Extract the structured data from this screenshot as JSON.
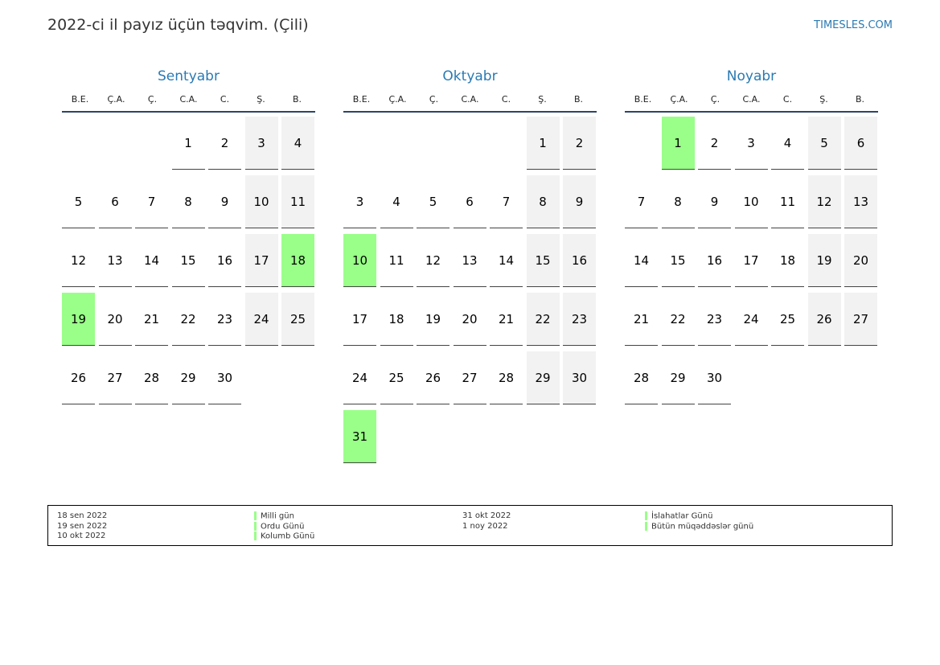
{
  "page": {
    "title": "2022-ci il payız üçün təqvim. (Çili)",
    "site": "TIMESLES.COM"
  },
  "colors": {
    "accent": "#2a7ab3",
    "holiday": "#99ff88",
    "weekend": "#f2f2f2",
    "header_line": "#2e4468"
  },
  "weekday_labels": [
    "B.E.",
    "Ç.A.",
    "Ç.",
    "C.A.",
    "C.",
    "Ş.",
    "B."
  ],
  "months": [
    {
      "name": "Sentyabr",
      "start_weekday": 3,
      "days": 30,
      "holidays": [
        18,
        19
      ]
    },
    {
      "name": "Oktyabr",
      "start_weekday": 5,
      "days": 31,
      "holidays": [
        10,
        31
      ]
    },
    {
      "name": "Noyabr",
      "start_weekday": 1,
      "days": 30,
      "holidays": [
        1
      ]
    }
  ],
  "legend": {
    "col1": [
      {
        "date": "18 sen 2022",
        "name": "Milli gün"
      },
      {
        "date": "19 sen 2022",
        "name": "Ordu Günü"
      },
      {
        "date": "10 okt 2022",
        "name": "Kolumb Günü"
      }
    ],
    "col2": [
      {
        "date": "31 okt 2022",
        "name": "İslahatlar Günü"
      },
      {
        "date": "1 noy 2022",
        "name": "Bütün müqəddəslər günü"
      }
    ]
  }
}
